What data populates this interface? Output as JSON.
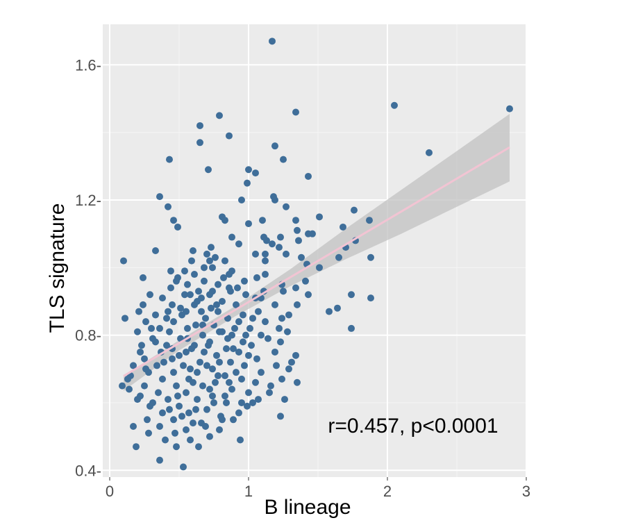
{
  "colors": {
    "panel_background": "#ebebeb",
    "grid_major": "#ffffff",
    "grid_minor": "#f5f5f5",
    "point": "#3f6e99",
    "fit_line": "#f2c4d3",
    "confidence_band": "#c2c2c2",
    "tick_label": "#4d4d4d"
  },
  "chart_data": {
    "type": "scatter",
    "xlabel": "B lineage",
    "ylabel": "TLS signature",
    "xlim": [
      -0.05,
      3.0
    ],
    "ylim": [
      0.38,
      1.72
    ],
    "x_ticks": [
      0,
      1,
      2,
      3
    ],
    "x_tick_labels": [
      "0",
      "1",
      "2",
      "3"
    ],
    "y_ticks": [
      0.4,
      0.8,
      1.2,
      1.6
    ],
    "y_tick_labels": [
      "0.4-",
      "0.8-",
      "1.2-",
      "1.6-"
    ],
    "grid": true,
    "annotation": "r=0.457, p<0.0001",
    "regression": {
      "slope": 0.2435,
      "intercept": 0.6546
    },
    "confidence_band": [
      {
        "x": 0.1,
        "lo": 0.635,
        "hi": 0.68
      },
      {
        "x": 0.5,
        "lo": 0.755,
        "hi": 0.785
      },
      {
        "x": 0.9,
        "lo": 0.855,
        "hi": 0.885
      },
      {
        "x": 1.3,
        "lo": 0.945,
        "hi": 0.995
      },
      {
        "x": 1.7,
        "lo": 1.025,
        "hi": 1.115
      },
      {
        "x": 2.1,
        "lo": 1.1,
        "hi": 1.23
      },
      {
        "x": 2.5,
        "lo": 1.18,
        "hi": 1.345
      },
      {
        "x": 2.88,
        "lo": 1.255,
        "hi": 1.455
      }
    ],
    "points": [
      [
        1.17,
        1.67
      ],
      [
        2.05,
        1.48
      ],
      [
        2.88,
        1.47
      ],
      [
        1.34,
        1.46
      ],
      [
        0.79,
        1.45
      ],
      [
        0.65,
        1.42
      ],
      [
        0.86,
        1.39
      ],
      [
        0.65,
        1.37
      ],
      [
        1.19,
        1.36
      ],
      [
        2.3,
        1.34
      ],
      [
        0.43,
        1.32
      ],
      [
        1.25,
        1.32
      ],
      [
        0.71,
        1.29
      ],
      [
        1.0,
        1.29
      ],
      [
        1.05,
        1.28
      ],
      [
        1.43,
        1.27
      ],
      [
        0.99,
        1.25
      ],
      [
        0.36,
        1.21
      ],
      [
        1.18,
        1.21
      ],
      [
        1.19,
        1.2
      ],
      [
        0.95,
        1.2
      ],
      [
        0.42,
        1.18
      ],
      [
        1.27,
        1.18
      ],
      [
        1.76,
        1.17
      ],
      [
        0.81,
        1.15
      ],
      [
        0.46,
        1.14
      ],
      [
        0.83,
        1.14
      ],
      [
        1.51,
        1.15
      ],
      [
        1.0,
        1.13
      ],
      [
        1.1,
        1.14
      ],
      [
        1.34,
        1.14
      ],
      [
        1.87,
        1.14
      ],
      [
        0.49,
        1.12
      ],
      [
        1.35,
        1.11
      ],
      [
        1.68,
        1.12
      ],
      [
        1.43,
        1.1
      ],
      [
        1.46,
        1.1
      ],
      [
        0.88,
        1.09
      ],
      [
        1.11,
        1.09
      ],
      [
        1.13,
        1.08
      ],
      [
        1.77,
        1.08
      ],
      [
        1.23,
        1.09
      ],
      [
        0.93,
        1.07
      ],
      [
        1.17,
        1.07
      ],
      [
        1.36,
        1.08
      ],
      [
        0.33,
        1.05
      ],
      [
        0.6,
        1.05
      ],
      [
        0.73,
        1.06
      ],
      [
        1.22,
        1.06
      ],
      [
        1.7,
        1.06
      ],
      [
        0.7,
        1.04
      ],
      [
        0.76,
        1.03
      ],
      [
        1.05,
        1.04
      ],
      [
        1.12,
        1.04
      ],
      [
        1.27,
        1.04
      ],
      [
        1.38,
        1.03
      ],
      [
        1.65,
        1.03
      ],
      [
        0.1,
        1.02
      ],
      [
        0.59,
        1.02
      ],
      [
        0.72,
        1.02
      ],
      [
        0.83,
        1.02
      ],
      [
        1.12,
        1.02
      ],
      [
        1.88,
        1.03
      ],
      [
        0.68,
        1.0
      ],
      [
        0.74,
        1.0
      ],
      [
        0.88,
        0.99
      ],
      [
        1.42,
        1.01
      ],
      [
        1.51,
        1.0
      ],
      [
        0.44,
        0.99
      ],
      [
        0.54,
        0.99
      ],
      [
        0.61,
        0.98
      ],
      [
        0.86,
        0.98
      ],
      [
        1.12,
        0.98
      ],
      [
        0.24,
        0.97
      ],
      [
        0.49,
        0.97
      ],
      [
        0.82,
        0.97
      ],
      [
        1.06,
        0.97
      ],
      [
        0.48,
        0.96
      ],
      [
        0.68,
        0.96
      ],
      [
        0.78,
        0.95
      ],
      [
        1.41,
        0.96
      ],
      [
        0.56,
        0.95
      ],
      [
        0.92,
        0.94
      ],
      [
        1.24,
        0.95
      ],
      [
        1.34,
        0.94
      ],
      [
        0.44,
        0.94
      ],
      [
        0.64,
        0.93
      ],
      [
        0.87,
        0.93
      ],
      [
        1.11,
        0.93
      ],
      [
        1.25,
        0.93
      ],
      [
        0.29,
        0.92
      ],
      [
        0.54,
        0.92
      ],
      [
        0.72,
        0.92
      ],
      [
        0.98,
        0.92
      ],
      [
        1.43,
        0.92
      ],
      [
        1.74,
        0.92
      ],
      [
        0.38,
        0.91
      ],
      [
        0.66,
        0.91
      ],
      [
        0.81,
        0.9
      ],
      [
        1.05,
        0.91
      ],
      [
        1.09,
        0.91
      ],
      [
        1.88,
        0.91
      ],
      [
        0.24,
        0.89
      ],
      [
        0.45,
        0.89
      ],
      [
        0.61,
        0.89
      ],
      [
        0.73,
        0.88
      ],
      [
        0.91,
        0.89
      ],
      [
        1.19,
        0.89
      ],
      [
        1.35,
        0.89
      ],
      [
        0.21,
        0.87
      ],
      [
        0.42,
        0.87
      ],
      [
        0.55,
        0.87
      ],
      [
        0.78,
        0.87
      ],
      [
        0.96,
        0.86
      ],
      [
        1.64,
        0.88
      ],
      [
        1.07,
        0.87
      ],
      [
        0.33,
        0.86
      ],
      [
        0.52,
        0.86
      ],
      [
        0.69,
        0.85
      ],
      [
        0.85,
        0.85
      ],
      [
        1.29,
        0.86
      ],
      [
        1.58,
        0.87
      ],
      [
        0.11,
        0.85
      ],
      [
        0.26,
        0.84
      ],
      [
        0.46,
        0.84
      ],
      [
        0.62,
        0.83
      ],
      [
        0.75,
        0.83
      ],
      [
        0.93,
        0.84
      ],
      [
        1.12,
        0.84
      ],
      [
        1.24,
        0.85
      ],
      [
        0.36,
        0.82
      ],
      [
        0.56,
        0.82
      ],
      [
        0.81,
        0.81
      ],
      [
        1.01,
        0.82
      ],
      [
        1.22,
        0.82
      ],
      [
        1.74,
        0.82
      ],
      [
        0.2,
        0.81
      ],
      [
        0.43,
        0.81
      ],
      [
        0.67,
        0.8
      ],
      [
        0.88,
        0.8
      ],
      [
        1.09,
        0.8
      ],
      [
        1.28,
        0.81
      ],
      [
        0.31,
        0.79
      ],
      [
        0.51,
        0.79
      ],
      [
        0.72,
        0.78
      ],
      [
        0.96,
        0.78
      ],
      [
        1.14,
        0.79
      ],
      [
        1.23,
        0.78
      ],
      [
        0.23,
        0.77
      ],
      [
        0.41,
        0.77
      ],
      [
        0.61,
        0.77
      ],
      [
        0.84,
        0.76
      ],
      [
        1.02,
        0.77
      ],
      [
        0.37,
        0.75
      ],
      [
        0.55,
        0.75
      ],
      [
        0.77,
        0.74
      ],
      [
        0.93,
        0.75
      ],
      [
        1.19,
        0.75
      ],
      [
        0.25,
        0.73
      ],
      [
        0.45,
        0.73
      ],
      [
        0.65,
        0.72
      ],
      [
        0.87,
        0.72
      ],
      [
        1.06,
        0.73
      ],
      [
        1.34,
        0.74
      ],
      [
        0.17,
        0.71
      ],
      [
        0.34,
        0.71
      ],
      [
        0.53,
        0.71
      ],
      [
        0.74,
        0.7
      ],
      [
        0.97,
        0.71
      ],
      [
        1.2,
        0.71
      ],
      [
        1.31,
        0.72
      ],
      [
        0.28,
        0.69
      ],
      [
        0.46,
        0.69
      ],
      [
        0.63,
        0.69
      ],
      [
        0.83,
        0.68
      ],
      [
        1.09,
        0.69
      ],
      [
        1.29,
        0.7
      ],
      [
        0.13,
        0.67
      ],
      [
        0.38,
        0.67
      ],
      [
        0.57,
        0.67
      ],
      [
        0.76,
        0.66
      ],
      [
        0.95,
        0.67
      ],
      [
        1.24,
        0.67
      ],
      [
        0.25,
        0.65
      ],
      [
        0.48,
        0.65
      ],
      [
        0.67,
        0.65
      ],
      [
        0.88,
        0.64
      ],
      [
        1.16,
        0.65
      ],
      [
        1.35,
        0.66
      ],
      [
        0.09,
        0.65
      ],
      [
        0.35,
        0.63
      ],
      [
        0.55,
        0.63
      ],
      [
        0.74,
        0.62
      ],
      [
        1.0,
        0.63
      ],
      [
        1.15,
        0.63
      ],
      [
        0.2,
        0.61
      ],
      [
        0.42,
        0.61
      ],
      [
        0.63,
        0.61
      ],
      [
        0.84,
        0.6
      ],
      [
        1.07,
        0.61
      ],
      [
        1.26,
        0.61
      ],
      [
        0.29,
        0.59
      ],
      [
        0.5,
        0.59
      ],
      [
        0.7,
        0.58
      ],
      [
        0.99,
        0.59
      ],
      [
        0.38,
        0.57
      ],
      [
        0.57,
        0.57
      ],
      [
        0.8,
        0.56
      ],
      [
        1.23,
        0.56
      ],
      [
        0.27,
        0.55
      ],
      [
        0.46,
        0.55
      ],
      [
        0.66,
        0.54
      ],
      [
        0.89,
        0.55
      ],
      [
        0.17,
        0.53
      ],
      [
        0.36,
        0.53
      ],
      [
        0.55,
        0.52
      ],
      [
        0.79,
        0.52
      ],
      [
        0.28,
        0.51
      ],
      [
        0.47,
        0.51
      ],
      [
        0.72,
        0.5
      ],
      [
        0.94,
        0.49
      ],
      [
        0.4,
        0.49
      ],
      [
        0.58,
        0.49
      ],
      [
        0.19,
        0.47
      ],
      [
        0.48,
        0.47
      ],
      [
        0.64,
        0.47
      ],
      [
        0.36,
        0.43
      ],
      [
        0.53,
        0.41
      ],
      [
        0.14,
        0.64
      ],
      [
        0.22,
        0.62
      ],
      [
        0.31,
        0.6
      ],
      [
        0.43,
        0.58
      ],
      [
        0.52,
        0.56
      ],
      [
        0.6,
        0.54
      ],
      [
        0.69,
        0.53
      ],
      [
        0.81,
        0.55
      ],
      [
        0.93,
        0.57
      ],
      [
        1.03,
        0.6
      ],
      [
        0.15,
        0.68
      ],
      [
        0.26,
        0.7
      ],
      [
        0.39,
        0.72
      ],
      [
        0.5,
        0.74
      ],
      [
        0.59,
        0.76
      ],
      [
        0.71,
        0.77
      ],
      [
        0.85,
        0.79
      ],
      [
        0.98,
        0.8
      ],
      [
        0.3,
        0.82
      ],
      [
        0.41,
        0.85
      ],
      [
        0.51,
        0.88
      ],
      [
        0.63,
        0.9
      ],
      [
        0.74,
        0.93
      ],
      [
        0.86,
        0.94
      ],
      [
        0.97,
        0.96
      ],
      [
        0.58,
        0.92
      ],
      [
        0.66,
        0.87
      ],
      [
        0.77,
        0.89
      ],
      [
        0.9,
        0.82
      ],
      [
        1.03,
        0.85
      ],
      [
        0.45,
        0.76
      ],
      [
        0.56,
        0.79
      ],
      [
        0.68,
        0.75
      ],
      [
        0.79,
        0.72
      ],
      [
        0.91,
        0.69
      ],
      [
        1.05,
        0.66
      ],
      [
        0.33,
        0.78
      ],
      [
        0.22,
        0.75
      ],
      [
        0.6,
        0.66
      ],
      [
        0.72,
        0.64
      ],
      [
        0.83,
        0.62
      ],
      [
        0.95,
        0.6
      ],
      [
        0.49,
        0.62
      ],
      [
        0.62,
        0.58
      ],
      [
        0.75,
        0.6
      ],
      [
        0.86,
        0.66
      ],
      [
        0.58,
        0.7
      ],
      [
        0.7,
        0.71
      ],
      [
        0.78,
        0.68
      ],
      [
        0.67,
        0.83
      ],
      [
        0.79,
        0.81
      ],
      [
        0.89,
        0.76
      ],
      [
        1.0,
        0.74
      ]
    ]
  }
}
